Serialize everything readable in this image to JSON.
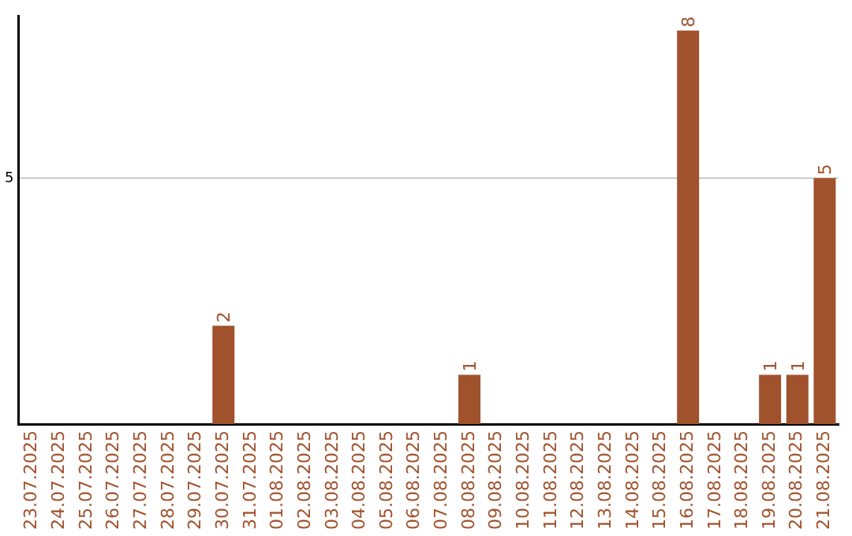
{
  "chart_data": {
    "type": "bar",
    "categories": [
      "23.07.2025",
      "24.07.2025",
      "25.07.2025",
      "26.07.2025",
      "27.07.2025",
      "28.07.2025",
      "29.07.2025",
      "30.07.2025",
      "31.07.2025",
      "01.08.2025",
      "02.08.2025",
      "03.08.2025",
      "04.08.2025",
      "05.08.2025",
      "06.08.2025",
      "07.08.2025",
      "08.08.2025",
      "09.08.2025",
      "10.08.2025",
      "11.08.2025",
      "12.08.2025",
      "13.08.2025",
      "14.08.2025",
      "15.08.2025",
      "16.08.2025",
      "17.08.2025",
      "18.08.2025",
      "19.08.2025",
      "20.08.2025",
      "21.08.2025"
    ],
    "values": [
      0,
      0,
      0,
      0,
      0,
      0,
      0,
      2,
      0,
      0,
      0,
      0,
      0,
      0,
      0,
      0,
      1,
      0,
      0,
      0,
      0,
      0,
      0,
      0,
      8,
      0,
      0,
      1,
      1,
      5
    ],
    "value_labels": [
      null,
      null,
      null,
      null,
      null,
      null,
      null,
      "2",
      null,
      null,
      null,
      null,
      null,
      null,
      null,
      null,
      "1",
      null,
      null,
      null,
      null,
      null,
      null,
      null,
      "8",
      null,
      null,
      "1",
      "1",
      "5"
    ],
    "color": "#a0522d",
    "ylim": [
      0,
      8.3
    ],
    "yticks": [
      5
    ],
    "grid": "y",
    "legend": false
  }
}
